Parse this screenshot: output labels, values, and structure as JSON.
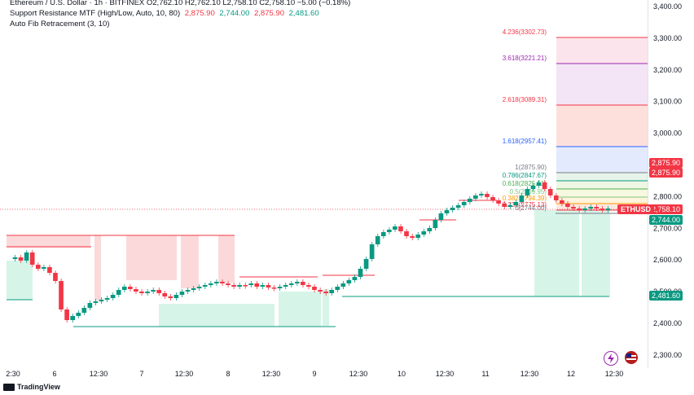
{
  "legend": {
    "line1": "Ethereum / U.S. Dollar · 1h · BITFINEX  O2,762.10  H2,762.10  L2,758.10  C2,758.10  −5.00 (−0.18%)",
    "line2_name": "Support Resistance MTF (High/Low, Auto, 10, 80)",
    "line2_values": [
      "2,875.90",
      "2,744.00",
      "2,875.90",
      "2,481.60"
    ],
    "line3": "Auto Fib Retracement (3, 10)"
  },
  "price_axis": {
    "ticks": [
      "3,400.00",
      "3,300.00",
      "3,200.00",
      "3,100.00",
      "3,000.00",
      "2,900.00",
      "2,800.00",
      "2,700.00",
      "2,600.00",
      "2,500.00",
      "2,400.00",
      "2,300.00"
    ]
  },
  "time_axis": {
    "ticks": [
      "2:30",
      "6",
      "12:30",
      "7",
      "12:30",
      "8",
      "12:30",
      "9",
      "12:30",
      "10",
      "12:30",
      "11",
      "12:30",
      "12",
      "12:30"
    ]
  },
  "fib_labels": [
    "4.236(3302.73)",
    "3.618(3221.21)",
    "2.618(3089.31)",
    "1.618(2957.41)",
    "1(2875.90)",
    "0.786(2847.67)",
    "0.618(2825.51)",
    "0.5(2809.95)",
    "0.382(2794.39)",
    "0.236(2775.13)",
    "0(2744.00)"
  ],
  "badges": {
    "r1": "2,875.90",
    "r2": "2,875.90",
    "last": "2,758.10",
    "s1": "2,744.00",
    "s2": "2,481.60"
  },
  "symbol_tag": "ETHUSD",
  "footer": "TradingView",
  "colors": {
    "up": "#089981",
    "down": "#f23645"
  }
}
